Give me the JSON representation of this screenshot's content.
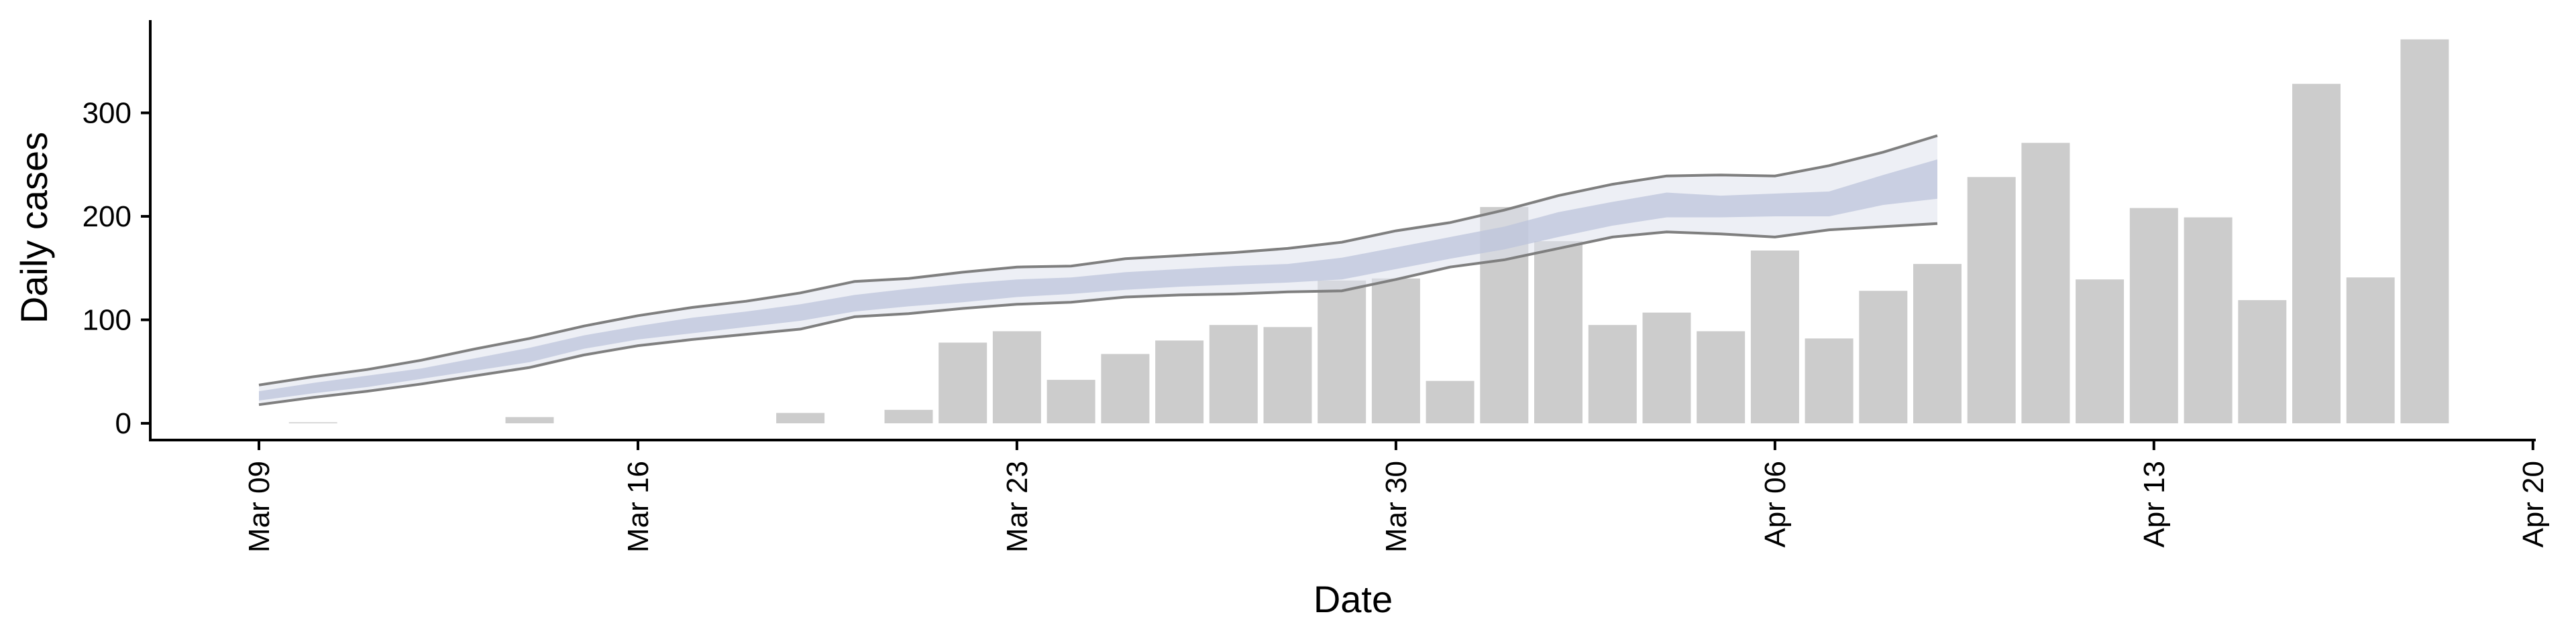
{
  "chart_data": {
    "type": "bar",
    "xlabel": "Date",
    "ylabel": "Daily cases",
    "ylim": [
      -18,
      390
    ],
    "y_ticks": [
      0,
      100,
      200,
      300
    ],
    "x_ticks": [
      "Mar 09",
      "Mar 16",
      "Mar 23",
      "Mar 30",
      "Apr 06",
      "Apr 13",
      "Apr 20"
    ],
    "x_start": "2020-03-09",
    "grid": false,
    "legend": "none",
    "colors": {
      "bars": "#cccccc",
      "band_outer": "#dfe2ec",
      "band_inner": "#bcc4db",
      "bound_line": "#7f7f7f",
      "axis": "#000000"
    },
    "bars": {
      "name": "Daily cases",
      "dates": [
        "2020-03-10",
        "2020-03-11",
        "2020-03-12",
        "2020-03-13",
        "2020-03-14",
        "2020-03-15",
        "2020-03-16",
        "2020-03-17",
        "2020-03-18",
        "2020-03-19",
        "2020-03-20",
        "2020-03-21",
        "2020-03-22",
        "2020-03-23",
        "2020-03-24",
        "2020-03-25",
        "2020-03-26",
        "2020-03-27",
        "2020-03-28",
        "2020-03-29",
        "2020-03-30",
        "2020-03-31",
        "2020-04-01",
        "2020-04-02",
        "2020-04-03",
        "2020-04-04",
        "2020-04-05",
        "2020-04-06",
        "2020-04-07",
        "2020-04-08",
        "2020-04-09",
        "2020-04-10",
        "2020-04-11",
        "2020-04-12",
        "2020-04-13",
        "2020-04-14",
        "2020-04-15",
        "2020-04-16",
        "2020-04-17",
        "2020-04-18"
      ],
      "values": [
        1,
        0,
        0,
        0,
        6,
        0,
        0,
        0,
        0,
        10,
        0,
        13,
        78,
        89,
        42,
        67,
        80,
        95,
        93,
        138,
        140,
        41,
        209,
        176,
        95,
        107,
        89,
        167,
        82,
        128,
        154,
        238,
        271,
        139,
        208,
        199,
        119,
        328,
        141,
        371
      ]
    },
    "forecast": {
      "dates": [
        "2020-03-09",
        "2020-03-10",
        "2020-03-11",
        "2020-03-12",
        "2020-03-13",
        "2020-03-14",
        "2020-03-15",
        "2020-03-16",
        "2020-03-17",
        "2020-03-18",
        "2020-03-19",
        "2020-03-20",
        "2020-03-21",
        "2020-03-22",
        "2020-03-23",
        "2020-03-24",
        "2020-03-25",
        "2020-03-26",
        "2020-03-27",
        "2020-03-28",
        "2020-03-29",
        "2020-03-30",
        "2020-03-31",
        "2020-04-01",
        "2020-04-02",
        "2020-04-03",
        "2020-04-04",
        "2020-04-05",
        "2020-04-06",
        "2020-04-07",
        "2020-04-08",
        "2020-04-09"
      ],
      "outer_upper": [
        37,
        45,
        52,
        61,
        72,
        82,
        94,
        104,
        112,
        118,
        126,
        137,
        140,
        146,
        151,
        152,
        159,
        162,
        165,
        169,
        175,
        186,
        194,
        206,
        220,
        231,
        239,
        240,
        239,
        249,
        262,
        278
      ],
      "outer_lower": [
        18,
        25,
        31,
        38,
        46,
        54,
        66,
        75,
        81,
        86,
        91,
        103,
        106,
        111,
        115,
        117,
        122,
        124,
        125,
        127,
        128,
        139,
        151,
        158,
        169,
        180,
        185,
        183,
        180,
        187,
        190,
        193
      ],
      "inner_upper": [
        31,
        39,
        46,
        53,
        63,
        73,
        85,
        94,
        102,
        108,
        115,
        124,
        130,
        135,
        139,
        141,
        146,
        149,
        152,
        154,
        160,
        170,
        180,
        190,
        204,
        214,
        223,
        220,
        222,
        224,
        240,
        255
      ],
      "inner_lower": [
        22,
        29,
        35,
        43,
        51,
        59,
        72,
        81,
        87,
        93,
        99,
        108,
        113,
        117,
        122,
        125,
        129,
        132,
        134,
        136,
        139,
        149,
        159,
        168,
        180,
        191,
        199,
        199,
        200,
        200,
        211,
        217
      ]
    }
  }
}
